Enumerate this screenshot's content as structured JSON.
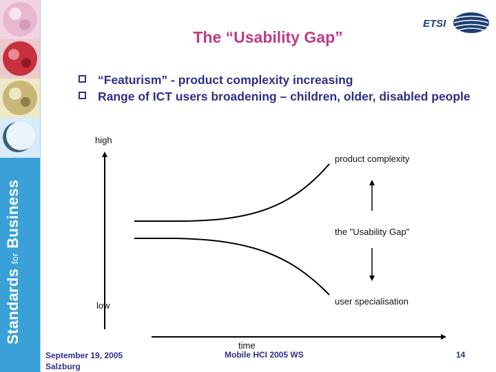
{
  "slide": {
    "title": "The “Usability Gap”",
    "bullets": [
      "“Featurism” - product complexity increasing",
      "Range of ICT users broadening – children, older, disabled people"
    ]
  },
  "sidebar": {
    "text_main_1": "Standards",
    "text_small": "for",
    "text_main_2": "Business"
  },
  "logo": {
    "text": "ETSI"
  },
  "diagram": {
    "y_axis_high": "high",
    "y_axis_low": "low",
    "x_axis_label": "time",
    "label_top_curve": "product complexity",
    "label_gap": "the \"Usability Gap\"",
    "label_bottom_curve": "user specialisation"
  },
  "footer": {
    "date": "September 19, 2005",
    "location": "Salzburg",
    "event": "Mobile HCI 2005 WS",
    "page": "14"
  },
  "colors": {
    "title": "#c0398a",
    "body_text": "#2e2e8c",
    "sidebar": "#3aa0d8"
  }
}
